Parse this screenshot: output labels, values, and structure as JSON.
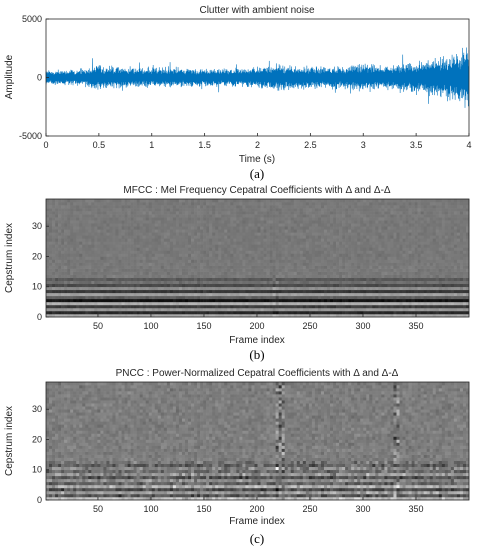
{
  "chart_data": [
    {
      "type": "line",
      "title": "Clutter with ambient noise",
      "xlabel": "Time (s)",
      "ylabel": "Amplitude",
      "caption": "(a)",
      "xlim": [
        0,
        4
      ],
      "ylim": [
        -5000,
        5000
      ],
      "xticks": [
        "0",
        "0.5",
        "1",
        "1.5",
        "2",
        "2.5",
        "3",
        "3.5",
        "4"
      ],
      "yticks": [
        "5000",
        "0",
        "-5000"
      ],
      "series_color": "#0072bd",
      "envelope": {
        "t": [
          0,
          0.2,
          0.4,
          0.5,
          0.6,
          0.8,
          1.0,
          1.2,
          1.4,
          1.6,
          1.8,
          2.0,
          2.2,
          2.4,
          2.6,
          2.8,
          3.0,
          3.2,
          3.4,
          3.5,
          3.6,
          3.7,
          3.8,
          3.9,
          4.0
        ],
        "amp": [
          700,
          700,
          900,
          1200,
          1100,
          1000,
          950,
          950,
          900,
          850,
          850,
          1000,
          1300,
          1100,
          1000,
          1100,
          1300,
          1200,
          1300,
          1500,
          1600,
          1900,
          2100,
          2400,
          3000
        ]
      }
    },
    {
      "type": "heatmap",
      "title": "MFCC : Mel Frequency Cepatral Coefficients with Δ and Δ-Δ",
      "xlabel": "Frame index",
      "ylabel": "Cepstrum index",
      "caption": "(b)",
      "xlim": [
        1,
        400
      ],
      "ylim": [
        0,
        39
      ],
      "xticks": [
        "50",
        "100",
        "150",
        "200",
        "250",
        "300",
        "350"
      ],
      "yticks": [
        "30",
        "20",
        "10",
        "0"
      ],
      "colormap": "gray"
    },
    {
      "type": "heatmap",
      "title": "PNCC : Power-Normalized Cepatral Coefficients with Δ and Δ-Δ",
      "xlabel": "Frame index",
      "ylabel": "Cepstrum index",
      "caption": "(c)",
      "xlim": [
        1,
        400
      ],
      "ylim": [
        0,
        39
      ],
      "xticks": [
        "50",
        "100",
        "150",
        "200",
        "250",
        "300",
        "350"
      ],
      "yticks": [
        "30",
        "20",
        "10",
        "0"
      ],
      "colormap": "gray"
    }
  ]
}
